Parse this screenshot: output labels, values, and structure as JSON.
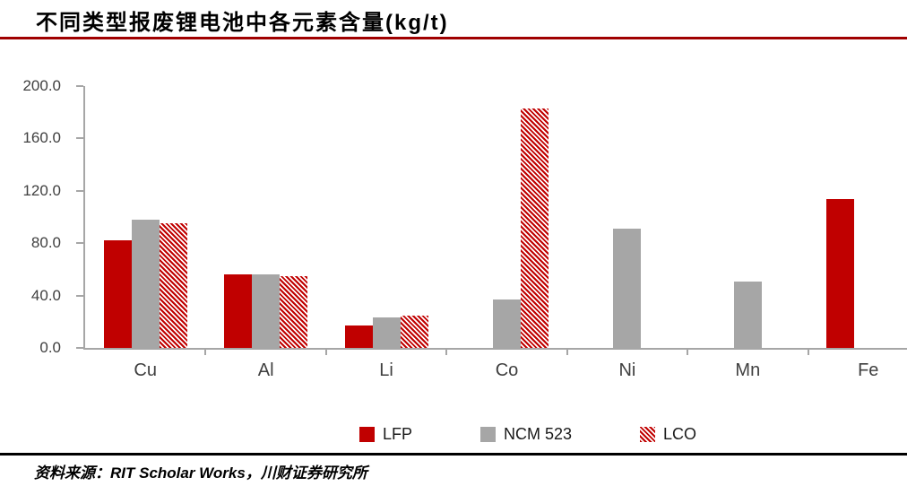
{
  "page": {
    "title": "不同类型报废锂电池中各元素含量(kg/t)",
    "source_note": "资料来源：RIT Scholar Works，川财证券研究所"
  },
  "colors": {
    "series_red": "#c00000",
    "series_gray": "#a6a6a6",
    "title_rule_red": "#a00000",
    "axis_gray": "#a6a6a6",
    "tick_label_gray": "#404040",
    "footer_rule_black": "#000000"
  },
  "chart_data": {
    "type": "bar",
    "title": "不同类型报废锂电池中各元素含量(kg/t)",
    "xlabel": "",
    "ylabel": "",
    "categories": [
      "Cu",
      "Al",
      "Li",
      "Co",
      "Ni",
      "Mn",
      "Fe"
    ],
    "series": [
      {
        "name": "LFP",
        "style": "solid-red",
        "color": "#c00000",
        "pattern": "solid",
        "values": [
          82,
          56,
          17,
          0,
          0,
          0,
          114
        ]
      },
      {
        "name": "NCM 523",
        "style": "solid-gray",
        "color": "#a6a6a6",
        "pattern": "solid",
        "values": [
          98,
          56,
          23,
          37,
          91,
          51,
          0
        ]
      },
      {
        "name": "LCO",
        "style": "hatched-red",
        "color": "#c00000",
        "pattern": "diagonal-stripes",
        "values": [
          95,
          55,
          25,
          183,
          0,
          0,
          0
        ]
      }
    ],
    "ylim": [
      0,
      200
    ],
    "yticks": [
      "0.0",
      "40.0",
      "80.0",
      "120.0",
      "160.0",
      "200.0"
    ],
    "grid": false,
    "legend_position": "bottom-center"
  }
}
